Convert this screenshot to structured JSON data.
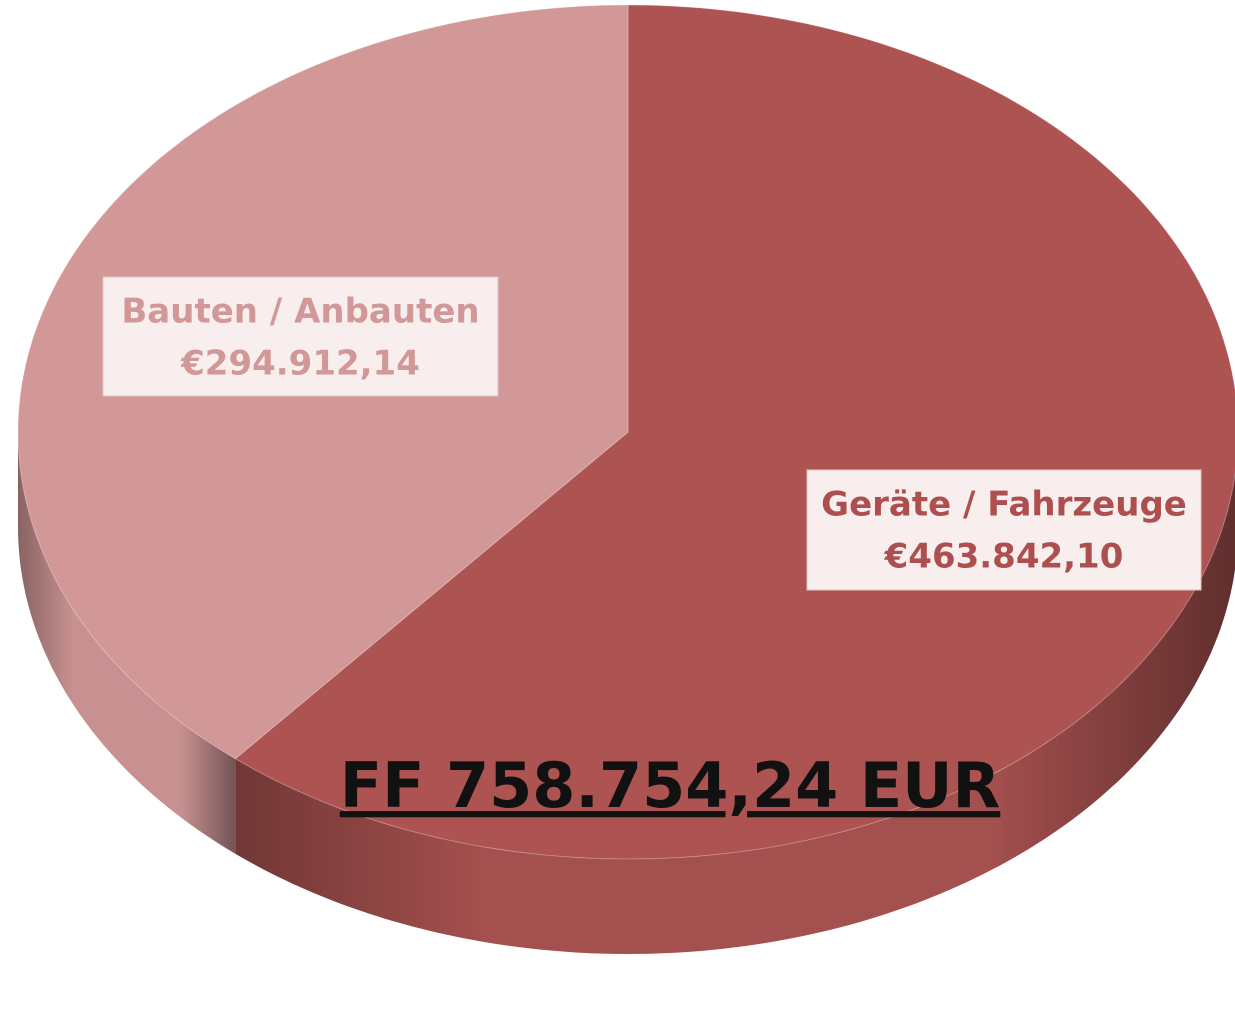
{
  "chart_data": {
    "type": "pie",
    "categories": [
      "Geräte / Fahrzeuge",
      "Bauten / Anbauten"
    ],
    "values": [
      463842.1,
      294912.14
    ],
    "value_labels": [
      "€463.842,10",
      "€294.912,14"
    ],
    "colors": [
      "#ad5452",
      "#d29898"
    ],
    "annotation": "FF 758.754,24 EUR"
  }
}
